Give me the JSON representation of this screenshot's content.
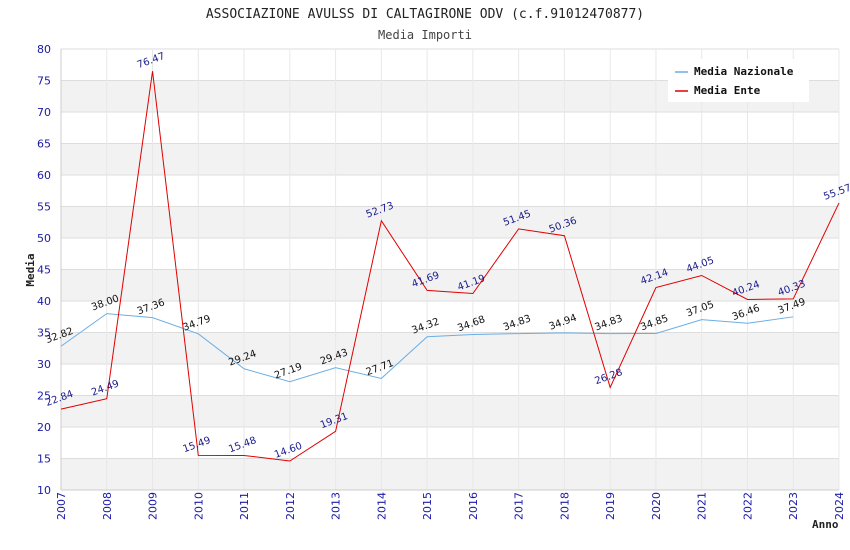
{
  "chart_data": {
    "type": "line",
    "title": "ASSOCIAZIONE AVULSS DI CALTAGIRONE ODV (c.f.91012470877)",
    "subtitle": "Media Importi",
    "xlabel": "Anno",
    "ylabel": "Media",
    "ylim": [
      10,
      80
    ],
    "yticks": [
      10,
      15,
      20,
      25,
      30,
      35,
      40,
      45,
      50,
      55,
      60,
      65,
      70,
      75,
      80
    ],
    "categories": [
      "2007",
      "2008",
      "2009",
      "2010",
      "2011",
      "2012",
      "2013",
      "2014",
      "2015",
      "2016",
      "2017",
      "2018",
      "2019",
      "2020",
      "2021",
      "2022",
      "2023",
      "2024"
    ],
    "grid": true,
    "legend_position": "top-right",
    "series": [
      {
        "name": "Media Nazionale",
        "color": "#6aaee6",
        "values": [
          32.82,
          38.0,
          37.36,
          34.79,
          29.24,
          27.19,
          29.43,
          27.71,
          34.32,
          34.68,
          34.83,
          34.94,
          34.83,
          34.85,
          37.05,
          36.46,
          37.49,
          null
        ],
        "labels": [
          "32.82",
          "38.00",
          "37.36",
          "34.79",
          "29.24",
          "27.19",
          "29.43",
          "27.71",
          "34.32",
          "34.68",
          "34.83",
          "34.94",
          "34.83",
          "34.85",
          "37.05",
          "36.46",
          "37.49",
          ""
        ]
      },
      {
        "name": "Media Ente",
        "color": "#e00000",
        "values": [
          22.84,
          24.49,
          76.47,
          15.49,
          15.48,
          14.6,
          19.31,
          52.73,
          41.69,
          41.19,
          51.45,
          50.36,
          26.28,
          42.14,
          44.05,
          40.24,
          40.33,
          55.57
        ],
        "labels": [
          "22.84",
          "24.49",
          "76.47",
          "15.49",
          "15.48",
          "14.60",
          "19.31",
          "52.73",
          "41.69",
          "41.19",
          "51.45",
          "50.36",
          "26.28",
          "42.14",
          "44.05",
          "40.24",
          "40.33",
          "55.57"
        ]
      }
    ]
  }
}
